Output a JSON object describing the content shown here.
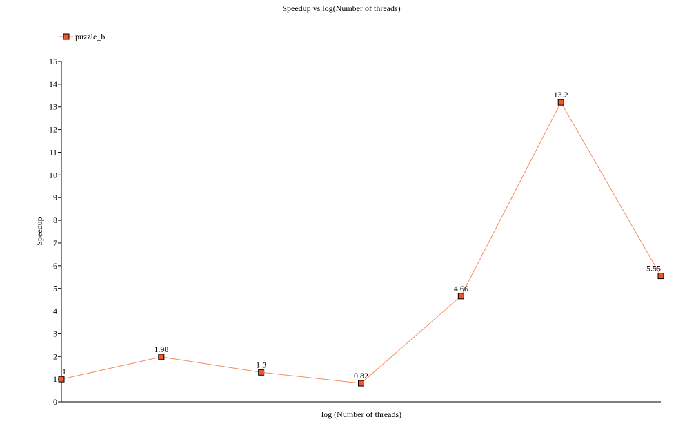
{
  "chart_data": {
    "type": "line",
    "title": "Speedup vs log(Number of threads)",
    "xlabel": "log (Number of threads)",
    "ylabel": "Speedup",
    "ylim": [
      0,
      15
    ],
    "yticks": [
      0,
      1,
      2,
      3,
      4,
      5,
      6,
      7,
      8,
      9,
      10,
      11,
      12,
      13,
      14,
      15
    ],
    "grid": false,
    "legend_position": "top-left",
    "x": [
      0,
      1,
      2,
      3,
      4,
      5,
      6
    ],
    "series": [
      {
        "name": "puzzle_b",
        "color": "#f58b60",
        "marker_color": "#f0572b",
        "values": [
          1,
          1.98,
          1.3,
          0.82,
          4.66,
          13.2,
          5.55
        ],
        "labels": [
          "1",
          "1.98",
          "1.3",
          "0.82",
          "4.66",
          "13.2",
          "5.55"
        ]
      }
    ]
  }
}
